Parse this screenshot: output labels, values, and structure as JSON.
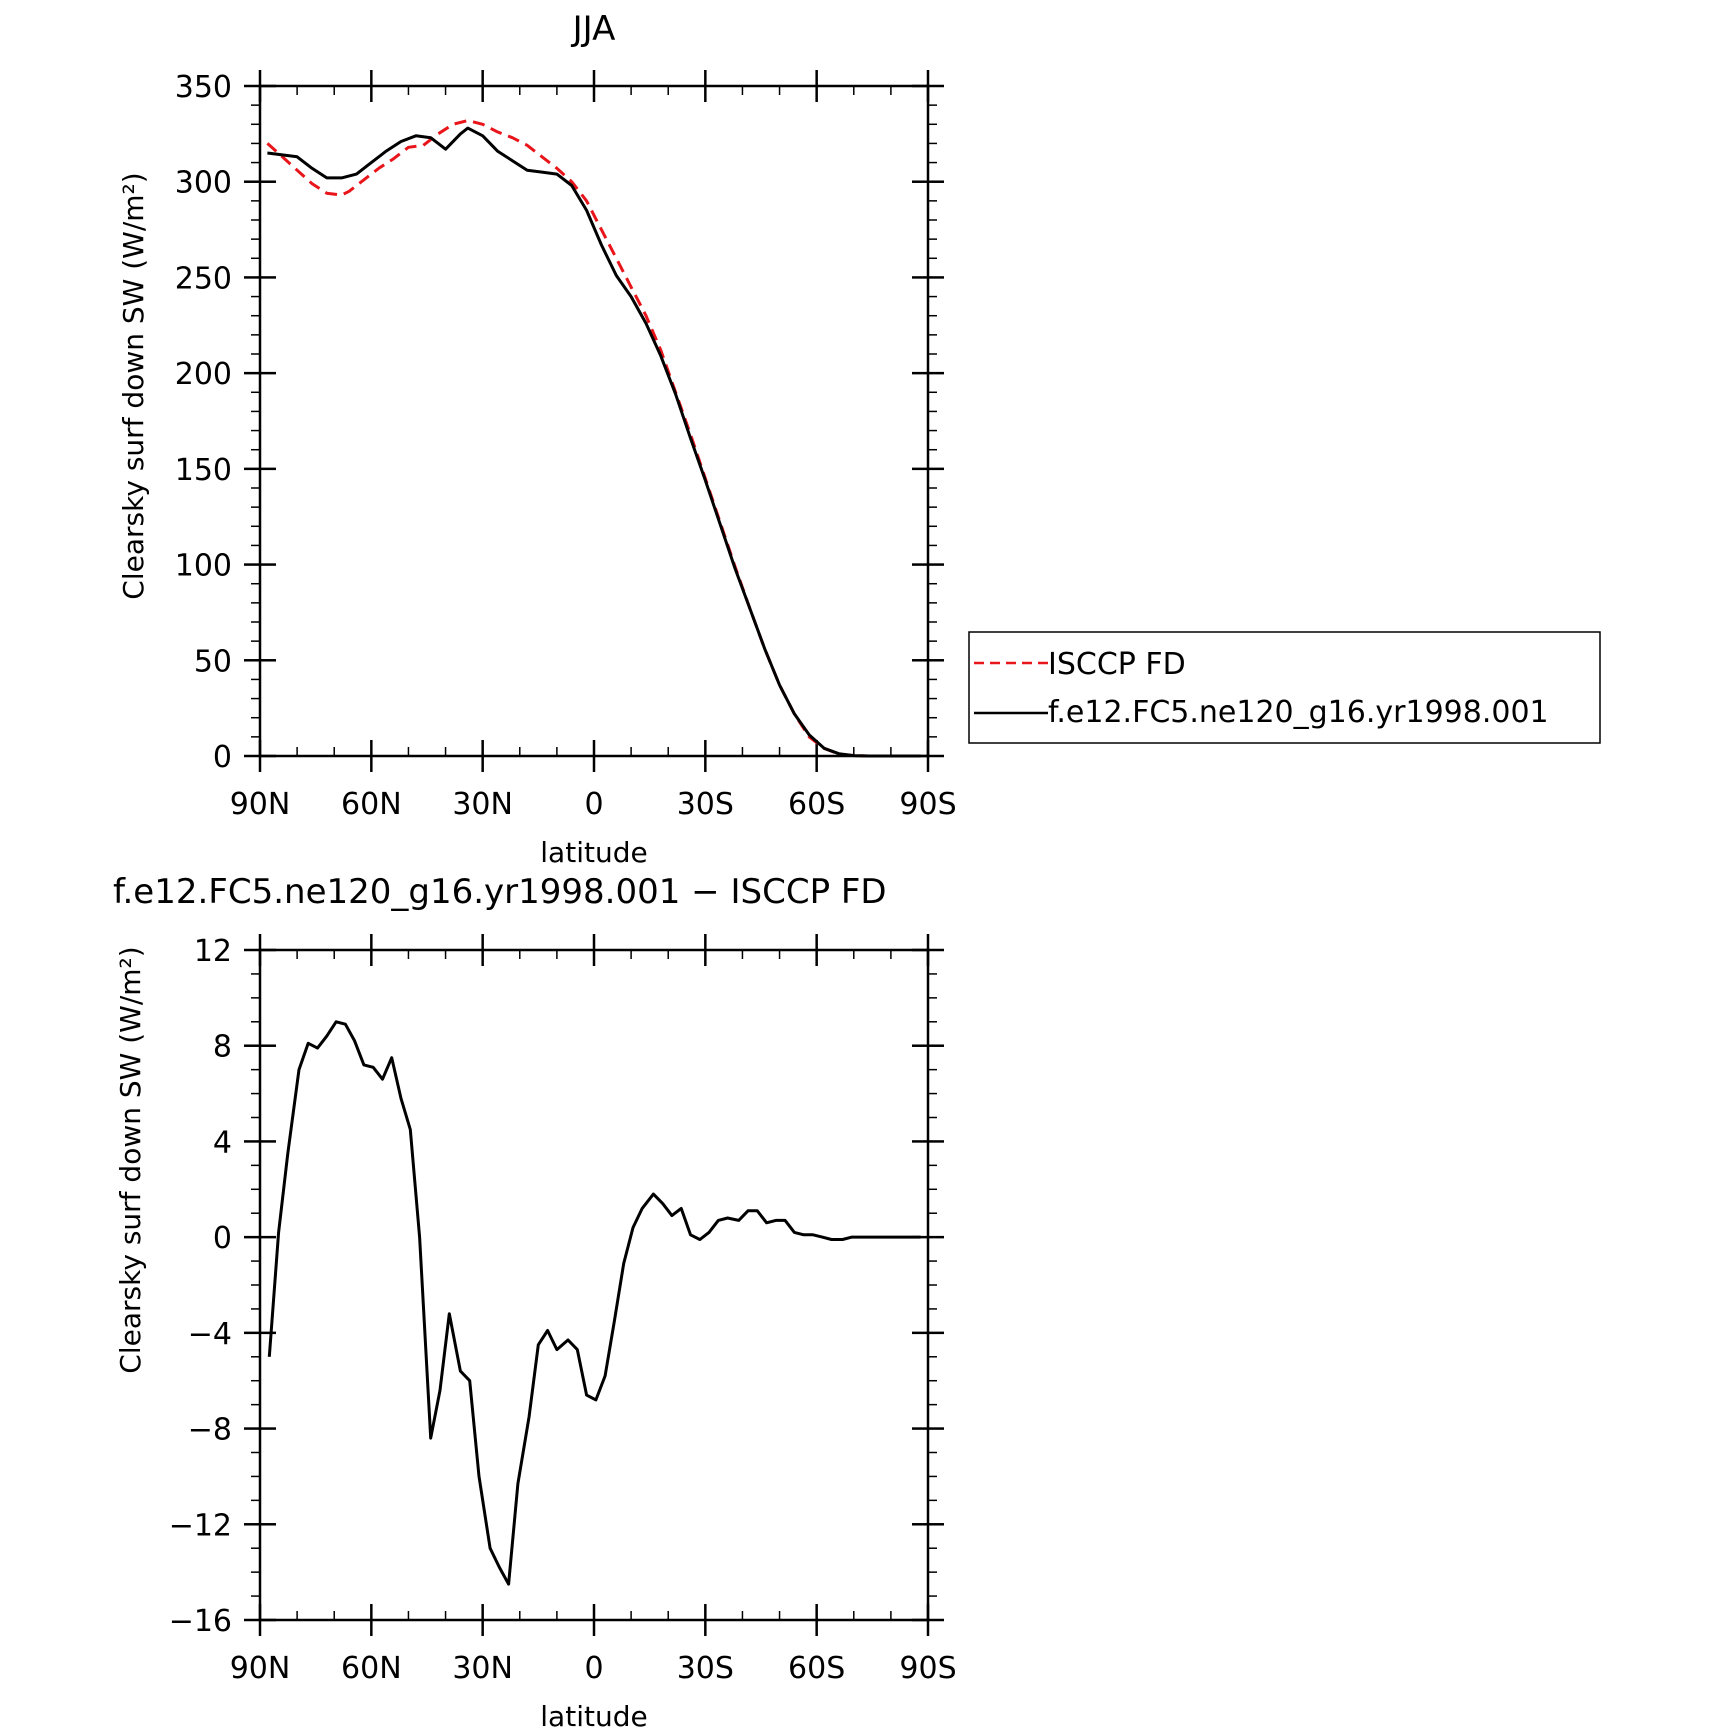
{
  "chart_data": [
    {
      "type": "line",
      "title": "JJA",
      "xlabel": "latitude",
      "ylabel": "Clearsky surf down SW (W/m²)",
      "xlim": [
        90,
        -90
      ],
      "ylim": [
        0,
        350
      ],
      "xticks": [
        90,
        60,
        30,
        0,
        -30,
        -60,
        -90
      ],
      "xtick_labels": [
        "90N",
        "60N",
        "30N",
        "0",
        "30S",
        "60S",
        "90S"
      ],
      "yticks": [
        0,
        50,
        100,
        150,
        200,
        250,
        300,
        350
      ],
      "ytick_labels": [
        "0",
        "50",
        "100",
        "150",
        "200",
        "250",
        "300",
        "350"
      ],
      "legend": "outside-right",
      "series": [
        {
          "name": "ISCCP FD",
          "color": "#e8151b",
          "dash": "dashed",
          "x": [
            88,
            84,
            80,
            76,
            72,
            68,
            66,
            62,
            58,
            54,
            50,
            46,
            42,
            38,
            34,
            30,
            26,
            22,
            18,
            14,
            10,
            6,
            2,
            -2,
            -6,
            -10,
            -14,
            -18,
            -22,
            -26,
            -30,
            -34,
            -38,
            -42,
            -46,
            -50,
            -54,
            -58,
            -62,
            -66,
            -70,
            -74,
            -78,
            -82,
            -86,
            -88
          ],
          "values": [
            320,
            313,
            306,
            299,
            294,
            293,
            295,
            301,
            307,
            312,
            318,
            319,
            325,
            330,
            332,
            330,
            326,
            323,
            319,
            313,
            307,
            300,
            290,
            275,
            260,
            245,
            230,
            212,
            190,
            168,
            145,
            122,
            99,
            77,
            56,
            37,
            22,
            10,
            4,
            1,
            0.2,
            0,
            0,
            0,
            0,
            0
          ]
        },
        {
          "name": "f.e12.FC5.ne120_g16.yr1998.001",
          "color": "#000000",
          "dash": "solid",
          "x": [
            88,
            84,
            80,
            76,
            72,
            68,
            64,
            60,
            56,
            52,
            48,
            44,
            40,
            36,
            34,
            30,
            26,
            22,
            18,
            14,
            10,
            6,
            2,
            -2,
            -6,
            -10,
            -14,
            -18,
            -22,
            -26,
            -30,
            -34,
            -38,
            -42,
            -46,
            -50,
            -54,
            -58,
            -62,
            -66,
            -70,
            -74,
            -78,
            -82,
            -86,
            -88
          ],
          "values": [
            315,
            314,
            313,
            307,
            302,
            302,
            304,
            310,
            316,
            321,
            324,
            323,
            317,
            325,
            328,
            324,
            316,
            311,
            306,
            305,
            304,
            298,
            285,
            267,
            251,
            240,
            226,
            209,
            189,
            166,
            144,
            121,
            98,
            77,
            56,
            37,
            22,
            11,
            4,
            1.2,
            0.2,
            0,
            0,
            0,
            0,
            0
          ]
        }
      ]
    },
    {
      "type": "line",
      "title": "f.e12.FC5.ne120_g16.yr1998.001 − ISCCP FD",
      "xlabel": "latitude",
      "ylabel": "Clearsky surf down SW (W/m²)",
      "xlim": [
        90,
        -90
      ],
      "ylim": [
        -16,
        12
      ],
      "xticks": [
        90,
        60,
        30,
        0,
        -30,
        -60,
        -90
      ],
      "xtick_labels": [
        "90N",
        "60N",
        "30N",
        "0",
        "30S",
        "60S",
        "90S"
      ],
      "yticks": [
        -16,
        -12,
        -8,
        -4,
        0,
        4,
        8,
        12
      ],
      "ytick_labels": [
        "−16",
        "−12",
        "−8",
        "−4",
        "0",
        "4",
        "8",
        "12"
      ],
      "series": [
        {
          "color": "#000000",
          "dash": "solid",
          "x": [
            87.5,
            85,
            82.5,
            79.5,
            77,
            74.5,
            72,
            69.5,
            67,
            64.5,
            62,
            59.5,
            57,
            54.5,
            52,
            49.5,
            47,
            44,
            41.5,
            39,
            36,
            33.5,
            31,
            28,
            25.5,
            23,
            20.5,
            17.5,
            15,
            12.5,
            10,
            7,
            4.5,
            2,
            -0.5,
            -3,
            -5.5,
            -8,
            -10.5,
            -13,
            -16,
            -18.5,
            -21,
            -23.5,
            -26,
            -28.5,
            -31,
            -33.5,
            -36,
            -39,
            -41.5,
            -44,
            -46.5,
            -49,
            -51.5,
            -54,
            -56.5,
            -59,
            -61.5,
            -64,
            -67,
            -69.5,
            -72,
            -74.5,
            -77,
            -79.5,
            -82,
            -84.5,
            -87,
            -88
          ],
          "values": [
            -5,
            0.2,
            3.5,
            7,
            8.1,
            7.9,
            8.4,
            9,
            8.9,
            8.2,
            7.2,
            7.1,
            6.6,
            7.5,
            5.8,
            4.5,
            0,
            -8.4,
            -6.4,
            -3.2,
            -5.6,
            -6,
            -10,
            -13,
            -13.8,
            -14.5,
            -10.3,
            -7.5,
            -4.5,
            -3.9,
            -4.7,
            -4.3,
            -4.7,
            -6.6,
            -6.8,
            -5.8,
            -3.5,
            -1.1,
            0.4,
            1.2,
            1.8,
            1.4,
            0.9,
            1.2,
            0.1,
            -0.1,
            0.2,
            0.7,
            0.8,
            0.7,
            1.1,
            1.1,
            0.6,
            0.7,
            0.7,
            0.2,
            0.1,
            0.1,
            0,
            -0.1,
            -0.1,
            0,
            0,
            0,
            0,
            0,
            0,
            0,
            0,
            0
          ]
        }
      ]
    }
  ]
}
